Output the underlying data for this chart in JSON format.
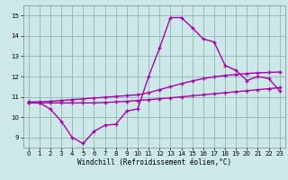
{
  "xlabel": "Windchill (Refroidissement éolien,°C)",
  "bg_color": "#cce8e8",
  "line_color": "#aa00aa",
  "grid_color": "#99bbbb",
  "x_ticks": [
    0,
    1,
    2,
    3,
    4,
    5,
    6,
    7,
    8,
    9,
    10,
    11,
    12,
    13,
    14,
    15,
    16,
    17,
    18,
    19,
    20,
    21,
    22,
    23
  ],
  "y_ticks": [
    9,
    10,
    11,
    12,
    13,
    14,
    15
  ],
  "xlim": [
    -0.5,
    23.5
  ],
  "ylim": [
    8.5,
    15.5
  ],
  "line1_x": [
    0,
    1,
    2,
    3,
    4,
    5,
    6,
    7,
    8,
    9,
    10,
    11,
    12,
    13,
    14,
    15,
    16,
    17,
    18,
    19,
    20,
    21,
    22,
    23
  ],
  "line1_y": [
    10.7,
    10.7,
    10.4,
    9.8,
    9.0,
    8.7,
    9.3,
    9.6,
    9.65,
    10.3,
    10.4,
    12.0,
    13.4,
    14.9,
    14.9,
    14.4,
    13.85,
    13.7,
    12.55,
    12.3,
    11.8,
    12.0,
    11.9,
    11.3
  ],
  "line2_x": [
    0,
    1,
    2,
    3,
    4,
    5,
    6,
    7,
    8,
    9,
    10,
    11,
    12,
    13,
    14,
    15,
    16,
    17,
    18,
    19,
    20,
    21,
    22,
    23
  ],
  "line2_y": [
    10.75,
    10.75,
    10.78,
    10.82,
    10.86,
    10.9,
    10.94,
    10.98,
    11.02,
    11.06,
    11.1,
    11.2,
    11.35,
    11.5,
    11.65,
    11.78,
    11.9,
    11.98,
    12.05,
    12.1,
    12.15,
    12.18,
    12.2,
    12.22
  ],
  "line3_x": [
    0,
    1,
    2,
    3,
    4,
    5,
    6,
    7,
    8,
    9,
    10,
    11,
    12,
    13,
    14,
    15,
    16,
    17,
    18,
    19,
    20,
    21,
    22,
    23
  ],
  "line3_y": [
    10.7,
    10.7,
    10.7,
    10.7,
    10.7,
    10.7,
    10.7,
    10.72,
    10.75,
    10.78,
    10.82,
    10.86,
    10.9,
    10.95,
    11.0,
    11.05,
    11.1,
    11.15,
    11.2,
    11.25,
    11.3,
    11.35,
    11.4,
    11.45
  ]
}
